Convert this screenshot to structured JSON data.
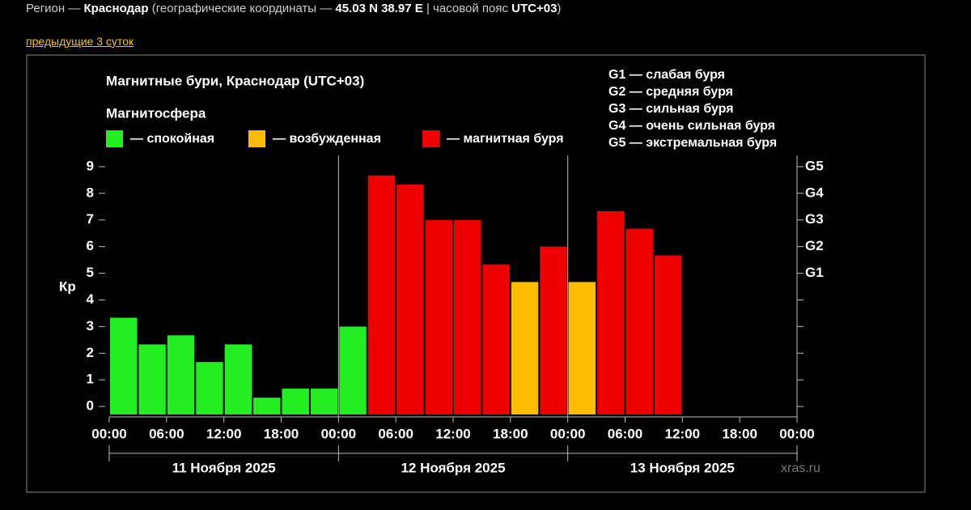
{
  "header": {
    "region_line": [
      "Регион — ",
      "Краснодар",
      " (географические координаты — ",
      "45.03 N 38.97 E",
      " | часовой пояс ",
      "UTC+03",
      ")"
    ],
    "link": "предыдущие 3 суток"
  },
  "chart_data": {
    "type": "bar",
    "title": "Магнитные бури, Краснодар (UTC+03)",
    "legend_title": "Магнитосфера",
    "y_label": "Кр",
    "source": "xras.ru",
    "categories": [
      null,
      null,
      null,
      null,
      null,
      null,
      null,
      null,
      null,
      null,
      null,
      null,
      null,
      null,
      null,
      null,
      null,
      null,
      null,
      null
    ],
    "series": [
      {
        "name": "— спокойная",
        "color": "#22ee22",
        "values": [
          3.33,
          2.33,
          2.67,
          1.67,
          2.33,
          0.33,
          0.67,
          0.67,
          3.0,
          null,
          null,
          null,
          null,
          null,
          null,
          null,
          null,
          null,
          null,
          null
        ]
      },
      {
        "name": "— возбужденная",
        "color": "#ffbb00",
        "values": [
          null,
          null,
          null,
          null,
          null,
          null,
          null,
          null,
          null,
          null,
          null,
          null,
          null,
          null,
          4.67,
          null,
          4.67,
          null,
          null,
          null
        ]
      },
      {
        "name": "— магнитная буря",
        "color": "#ee0000",
        "values": [
          null,
          null,
          null,
          null,
          null,
          null,
          null,
          null,
          null,
          8.67,
          8.33,
          7.0,
          7.0,
          5.33,
          null,
          6.0,
          null,
          7.33,
          6.67,
          5.67
        ]
      }
    ],
    "xtick_labels": [
      "00:00",
      "06:00",
      "12:00",
      "18:00",
      "00:00",
      "06:00",
      "12:00",
      "18:00",
      "00:00",
      "06:00",
      "12:00",
      "18:00",
      "00:00"
    ],
    "groups": [
      "11 Ноября 2025",
      "12 Ноября 2025",
      "13 Ноября 2025"
    ],
    "ylim": [
      -0.3,
      9.3
    ],
    "yticks": [
      0,
      1,
      2,
      3,
      4,
      5,
      6,
      7,
      8,
      9
    ],
    "y2lim": [
      -0.3,
      9.3
    ],
    "y2ticks": [
      {
        "value": 5,
        "label": "G1"
      },
      {
        "value": 6,
        "label": "G2"
      },
      {
        "value": 7,
        "label": "G3"
      },
      {
        "value": 8,
        "label": "G4"
      },
      {
        "value": 9,
        "label": "G5"
      }
    ],
    "scale_legend": [
      "G1 — слабая буря",
      "G2 — средняя буря",
      "G3 — сильная буря",
      "G4 — очень сильная буря",
      "G5 — экстремальная буря"
    ]
  }
}
